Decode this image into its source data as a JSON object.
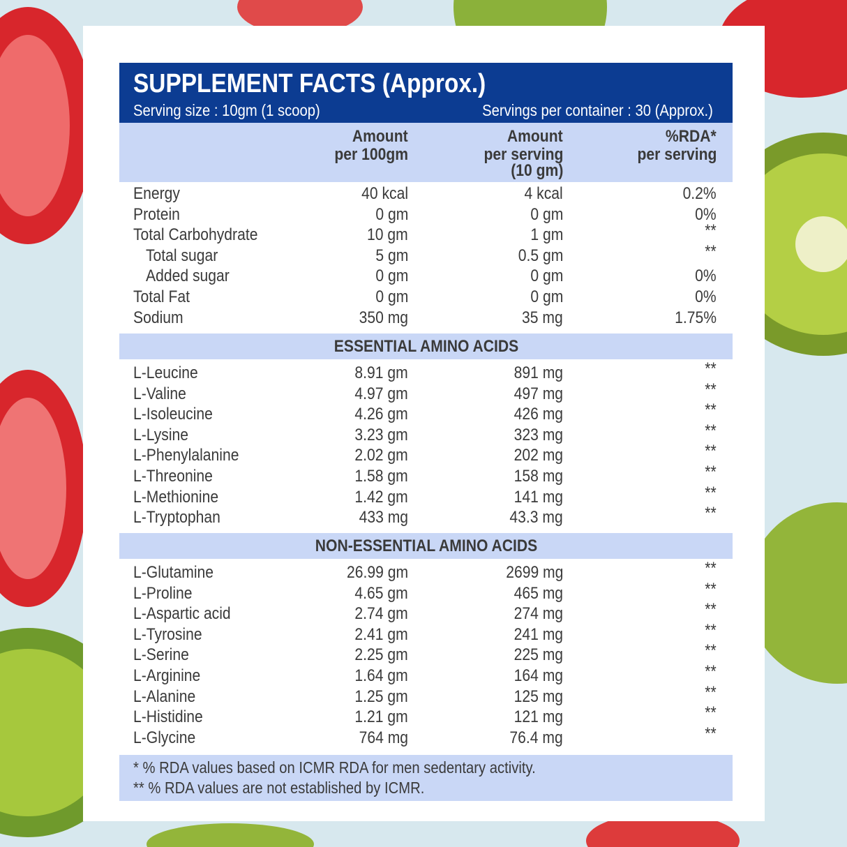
{
  "header": {
    "title": "SUPPLEMENT FACTS (Approx.)",
    "serving_size": "Serving size : 10gm (1 scoop)",
    "servings_per_container": "Servings per container : 30 (Approx.)"
  },
  "table": {
    "columns": [
      [
        "Amount",
        "per 100gm"
      ],
      [
        "Amount",
        "per serving",
        "(10 gm)"
      ],
      [
        "%RDA*",
        "per serving"
      ]
    ],
    "rows": [
      [
        "Energy",
        "40 kcal",
        "4 kcal",
        "0.2%"
      ],
      [
        "Protein",
        "0 gm",
        "0 gm",
        "0%"
      ],
      [
        "Total Carbohydrate",
        "10 gm",
        "1 gm",
        "**"
      ],
      [
        "Total sugar",
        "5 gm",
        "0.5 gm",
        "**"
      ],
      [
        "Added sugar",
        "0 gm",
        "0 gm",
        "0%"
      ],
      [
        "Total Fat",
        "0 gm",
        "0 gm",
        "0%"
      ],
      [
        "Sodium",
        "350 mg",
        "35 mg",
        "1.75%"
      ]
    ],
    "sections": [
      {
        "title": "ESSENTIAL AMINO ACIDS",
        "rows": [
          [
            "L-Leucine",
            "8.91 gm",
            "891 mg",
            "**"
          ],
          [
            "L-Valine",
            "4.97 gm",
            "497 mg",
            "**"
          ],
          [
            "L-Isoleucine",
            "4.26 gm",
            "426 mg",
            "**"
          ],
          [
            "L-Lysine",
            "3.23 gm",
            "323 mg",
            "**"
          ],
          [
            "L-Phenylalanine",
            "2.02 gm",
            "202 mg",
            "**"
          ],
          [
            "L-Threonine",
            "1.58 gm",
            "158 mg",
            "**"
          ],
          [
            "L-Methionine",
            "1.42 gm",
            "141 mg",
            "**"
          ],
          [
            "L-Tryptophan",
            "433 mg",
            "43.3 mg",
            "**"
          ]
        ]
      },
      {
        "title": "NON-ESSENTIAL AMINO ACIDS",
        "rows": [
          [
            "L-Glutamine",
            "26.99 gm",
            "2699 mg",
            "**"
          ],
          [
            "L-Proline",
            "4.65 gm",
            "465 mg",
            "**"
          ],
          [
            "L-Aspartic acid",
            "2.74 gm",
            "274 mg",
            "**"
          ],
          [
            "L-Tyrosine",
            "2.41 gm",
            "241 mg",
            "**"
          ],
          [
            "L-Serine",
            "2.25 gm",
            "225 mg",
            "**"
          ],
          [
            "L-Arginine",
            "1.64 gm",
            "164 mg",
            "**"
          ],
          [
            "L-Alanine",
            "1.25 gm",
            "125 mg",
            "**"
          ],
          [
            "L-Histidine",
            "1.21 gm",
            "121 mg",
            "**"
          ],
          [
            "L-Glycine",
            "764 mg",
            "76.4 mg",
            "**"
          ]
        ]
      }
    ]
  },
  "footnotes": [
    "* % RDA values based on ICMR RDA for men sedentary activity.",
    "** % RDA values are not established by ICMR."
  ]
}
